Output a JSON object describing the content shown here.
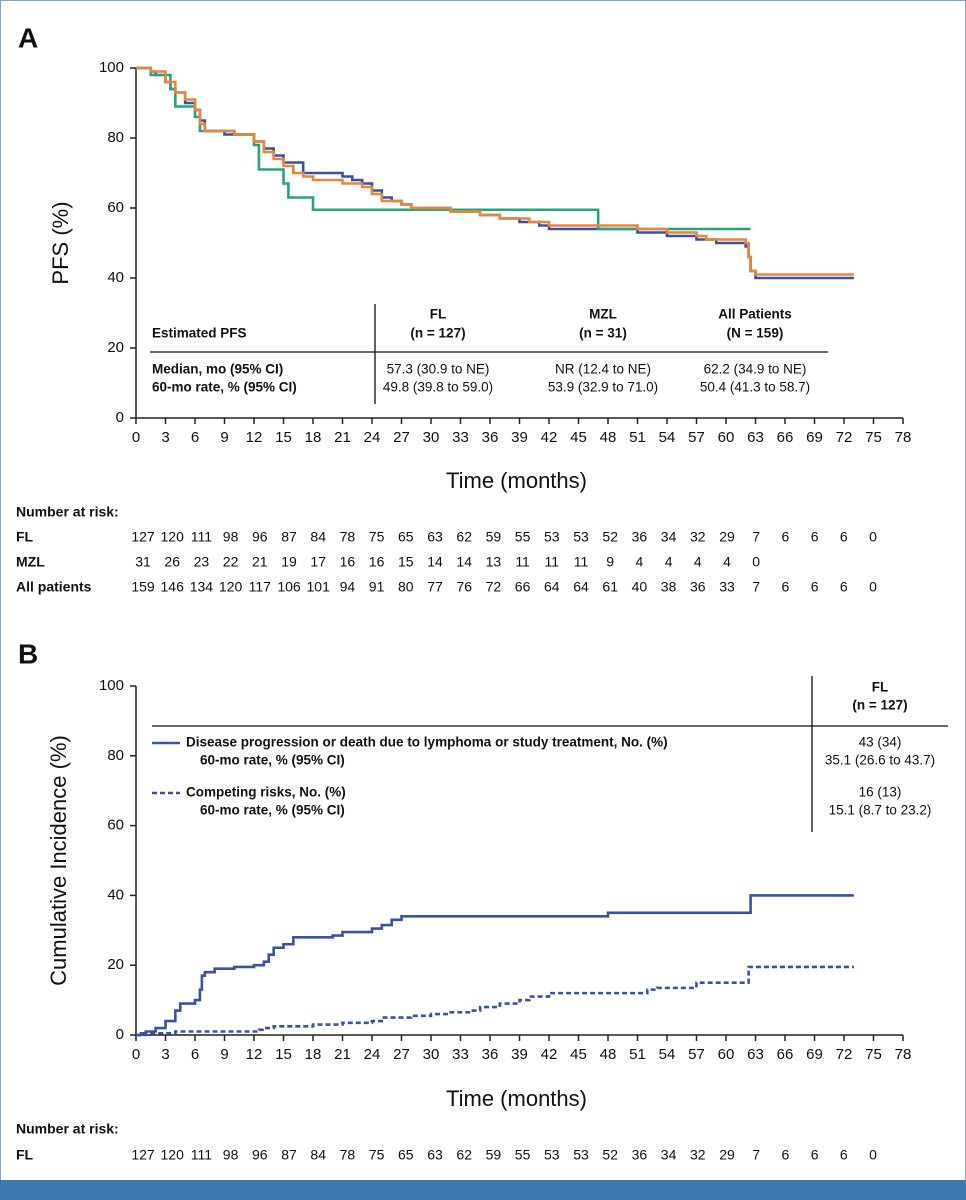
{
  "chart_data": [
    {
      "type": "step",
      "panel_label": "A",
      "y_label": "PFS (%)",
      "x_label": "Time (months)",
      "xlim": [
        0,
        78
      ],
      "xticks": [
        0,
        3,
        6,
        9,
        12,
        15,
        18,
        21,
        24,
        27,
        30,
        33,
        36,
        39,
        42,
        45,
        48,
        51,
        54,
        57,
        60,
        63,
        66,
        69,
        72,
        75,
        78
      ],
      "ylim": [
        0,
        100
      ],
      "yticks": [
        0,
        20,
        40,
        60,
        80,
        100
      ],
      "series": [
        {
          "name": "FL",
          "color": "#3a52a3",
          "dash": false,
          "x": [
            0,
            1.5,
            2,
            3,
            3.5,
            4,
            5,
            6,
            6.5,
            7,
            9,
            12,
            13,
            14,
            15,
            17,
            21,
            22,
            23,
            24,
            25,
            26,
            27,
            28,
            32,
            35,
            37,
            39,
            41,
            42,
            51,
            54,
            57,
            59,
            62,
            62.3,
            62.5,
            63,
            73
          ],
          "values": [
            100,
            99,
            98,
            96,
            94,
            93,
            90,
            88,
            85,
            82,
            81,
            79,
            77,
            75,
            73,
            70,
            69,
            68,
            67,
            65,
            63,
            62,
            61,
            60,
            59,
            58,
            57,
            56,
            55,
            54,
            53,
            52,
            51,
            50,
            49,
            46,
            42,
            40,
            40
          ]
        },
        {
          "name": "MZL",
          "color": "#26a47c",
          "dash": false,
          "x": [
            0,
            1.5,
            3.5,
            4,
            6,
            6.5,
            10,
            12,
            12.5,
            15,
            15.5,
            18,
            47,
            62.5
          ],
          "values": [
            100,
            98,
            94,
            89,
            86,
            82,
            81,
            78,
            71,
            67,
            63,
            59.5,
            54,
            54
          ]
        },
        {
          "name": "All Patients",
          "color": "#e8873a",
          "dash": false,
          "x": [
            0,
            1.5,
            3,
            4,
            5,
            6,
            6.5,
            7,
            10,
            12,
            13,
            14,
            15,
            16,
            17,
            18,
            21,
            23,
            24,
            25,
            27,
            28,
            32,
            35,
            37,
            40,
            42,
            51,
            54,
            57,
            58,
            62,
            62.3,
            62.5,
            63,
            73
          ],
          "values": [
            100,
            99,
            96,
            93,
            91,
            88,
            84,
            82,
            81,
            79,
            76,
            74,
            72,
            70,
            69,
            68,
            67,
            66,
            64,
            62,
            61,
            60,
            59,
            58,
            57,
            56,
            55,
            54,
            53,
            52,
            51,
            50,
            46,
            42,
            41,
            41
          ]
        }
      ],
      "table": {
        "title": "Estimated PFS",
        "columns": [
          {
            "name": "FL",
            "n": "(n = 127)"
          },
          {
            "name": "MZL",
            "n": "(n = 31)"
          },
          {
            "name": "All Patients",
            "n": "(N = 159)"
          }
        ],
        "rows": [
          {
            "label": "Median, mo (95% CI)",
            "cells": [
              "57.3 (30.9 to NE)",
              "NR (12.4 to NE)",
              "62.2 (34.9 to NE)"
            ]
          },
          {
            "label": "60-mo rate, % (95% CI)",
            "cells": [
              "49.8 (39.8 to 59.0)",
              "53.9 (32.9 to 71.0)",
              "50.4 (41.3 to 58.7)"
            ]
          }
        ]
      },
      "risk_table": {
        "title": "Number at risk:",
        "rows": [
          {
            "name": "FL",
            "values": [
              127,
              120,
              111,
              98,
              96,
              87,
              84,
              78,
              75,
              65,
              63,
              62,
              59,
              55,
              53,
              53,
              52,
              36,
              34,
              32,
              29,
              7,
              6,
              6,
              6,
              0
            ]
          },
          {
            "name": "MZL",
            "values": [
              31,
              26,
              23,
              22,
              21,
              19,
              17,
              16,
              16,
              15,
              14,
              14,
              13,
              11,
              11,
              11,
              9,
              4,
              4,
              4,
              4,
              0
            ]
          },
          {
            "name": "All patients",
            "values": [
              159,
              146,
              134,
              120,
              117,
              106,
              101,
              94,
              91,
              80,
              77,
              76,
              72,
              66,
              64,
              64,
              61,
              40,
              38,
              36,
              33,
              7,
              6,
              6,
              6,
              0
            ]
          }
        ]
      }
    },
    {
      "type": "step",
      "panel_label": "B",
      "y_label": "Cumulative Incidence (%)",
      "x_label": "Time (months)",
      "xlim": [
        0,
        78
      ],
      "xticks": [
        0,
        3,
        6,
        9,
        12,
        15,
        18,
        21,
        24,
        27,
        30,
        33,
        36,
        39,
        42,
        45,
        48,
        51,
        54,
        57,
        60,
        63,
        66,
        69,
        72,
        75,
        78
      ],
      "ylim": [
        0,
        100
      ],
      "yticks": [
        0,
        20,
        40,
        60,
        80,
        100
      ],
      "series": [
        {
          "name": "Disease progression or death due to lymphoma or study treatment, No. (%)",
          "color": "#3a52a3",
          "dash": false,
          "x": [
            0,
            0.5,
            1,
            2,
            3,
            4,
            4.5,
            6,
            6.5,
            6.7,
            7,
            8,
            10,
            12,
            13,
            13.5,
            14,
            15,
            16,
            20,
            21,
            24,
            25,
            26,
            27,
            48,
            62,
            62.5,
            73
          ],
          "values": [
            0,
            0.5,
            1,
            2,
            4,
            7,
            9,
            10,
            13,
            17,
            18,
            19,
            19.5,
            20,
            21,
            23,
            25,
            26,
            28,
            28.5,
            29.5,
            30.5,
            31.5,
            33,
            34,
            35,
            35,
            40,
            40
          ]
        },
        {
          "name": "Competing risks, No. (%)",
          "color": "#3a52a3",
          "dash": true,
          "x": [
            0,
            1,
            4,
            12.5,
            13,
            14,
            18,
            21,
            24,
            25,
            28,
            30,
            32,
            34,
            35,
            37,
            39,
            40,
            42,
            52,
            53,
            57,
            62.3,
            73
          ],
          "values": [
            0,
            0.5,
            1,
            1.5,
            2,
            2.5,
            3,
            3.5,
            4,
            5,
            5.5,
            6,
            6.5,
            7,
            8,
            9,
            10,
            11,
            12,
            13,
            13.5,
            15,
            19.5,
            19.5
          ]
        }
      ],
      "table": {
        "columns": [
          {
            "name": "FL",
            "n": "(n = 127)"
          }
        ],
        "rows": [
          {
            "count": "43 (34)",
            "rate_label": "60-mo rate, % (95% CI)",
            "rate": "35.1 (26.6 to 43.7)"
          },
          {
            "count": "16 (13)",
            "rate_label": "60-mo rate, % (95% CI)",
            "rate": "15.1 (8.7 to 23.2)"
          }
        ]
      },
      "risk_table": {
        "title": "Number at risk:",
        "rows": [
          {
            "name": "FL",
            "values": [
              127,
              120,
              111,
              98,
              96,
              87,
              84,
              78,
              75,
              65,
              63,
              62,
              59,
              55,
              53,
              53,
              52,
              36,
              34,
              32,
              29,
              7,
              6,
              6,
              6,
              0
            ]
          }
        ]
      }
    }
  ]
}
